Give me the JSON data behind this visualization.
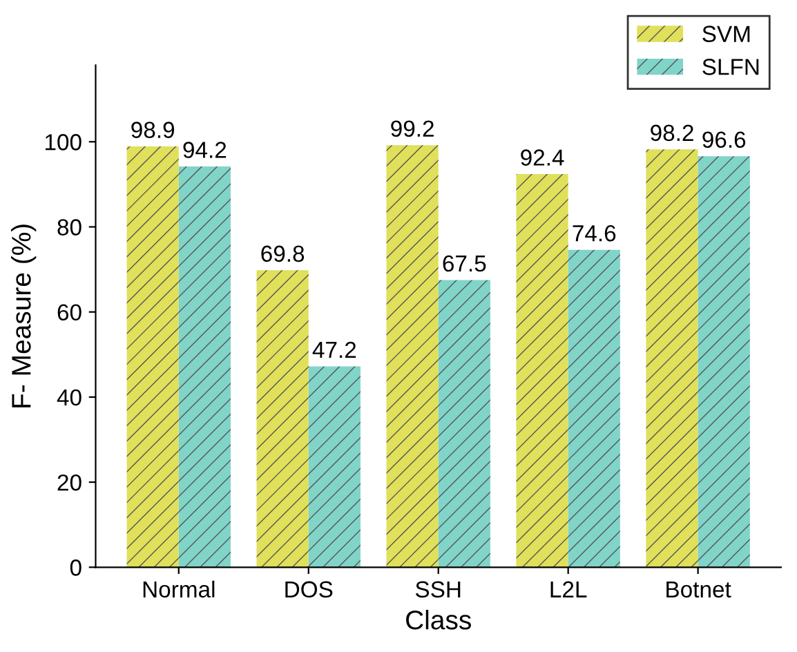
{
  "chart_data": {
    "type": "bar",
    "xlabel": "Class",
    "ylabel": "F- Measure (%)",
    "categories": [
      "Normal",
      "DOS",
      "SSH",
      "L2L",
      "Botnet"
    ],
    "series": [
      {
        "name": "SVM",
        "color": "#e0e05a",
        "values": [
          98.9,
          69.8,
          99.2,
          92.4,
          98.2
        ]
      },
      {
        "name": "SLFN",
        "color": "#80d4c8",
        "values": [
          94.2,
          47.2,
          67.5,
          74.6,
          96.6
        ]
      }
    ],
    "ylim": [
      0,
      118
    ],
    "yticks": [
      0,
      20,
      40,
      60,
      80,
      100
    ],
    "data_labels": true,
    "legend": "top right",
    "grid": false
  }
}
